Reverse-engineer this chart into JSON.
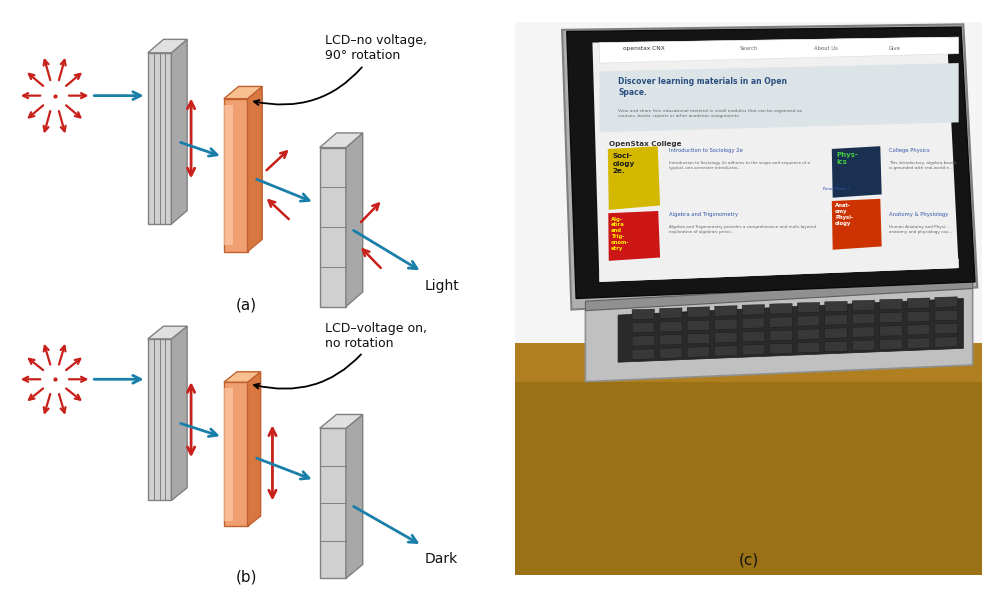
{
  "fig_width": 9.72,
  "fig_height": 5.77,
  "bg_color": "#ffffff",
  "panel_a_label": "(a)",
  "panel_b_label": "(b)",
  "panel_c_label": "(c)",
  "lcd_label_a": "LCD–no voltage,\n90° rotation",
  "lcd_label_b": "LCD–voltage on,\nno rotation",
  "light_label": "Light",
  "dark_label": "Dark",
  "arrow_color_red": "#c8201a",
  "arrow_color_blue": "#1a7fa8",
  "polarizer_face": "#d0d0d0",
  "polarizer_side": "#a8a8a8",
  "polarizer_top": "#e0e0e0",
  "polarizer_edge": "#808080",
  "lcd_face": "#f0a070",
  "lcd_face_light": "#fdd0b0",
  "lcd_side": "#d87840",
  "lcd_top": "#f8c090",
  "lcd_edge": "#c06030",
  "horiz_pol_face": "#c8c8c8",
  "horiz_pol_side": "#a0a0a0",
  "text_color": "#111111",
  "desk_color_top": "#b8940a",
  "desk_color_bottom": "#8B6010",
  "laptop_silver": "#b0b0b0",
  "laptop_dark": "#282828",
  "screen_bg": "#f2f2f2",
  "bezel_color": "#141414",
  "nav_bg": "#ffffff",
  "hero_bg": "#e0e4e8",
  "hero_text_color": "#2a5080",
  "section_text_color": "#333333",
  "soc_book_color": "#d4b800",
  "phys_book_color": "#1a3050",
  "alg_book_color": "#cc1515",
  "anat_book_color": "#cc3300",
  "link_color": "#3355aa",
  "body_text_color": "#666666"
}
